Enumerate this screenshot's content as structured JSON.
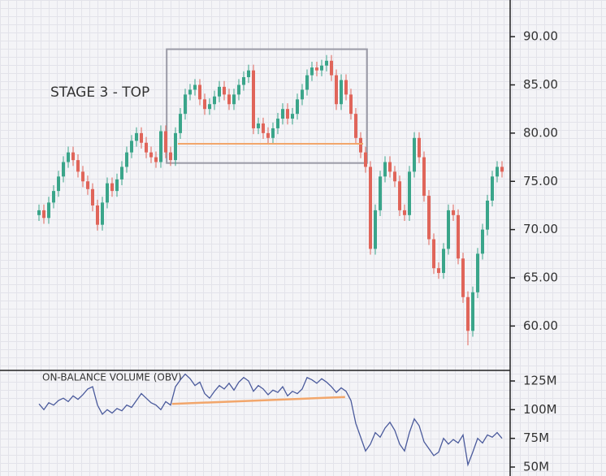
{
  "chart_data": [
    {
      "type": "candlestick",
      "annotation": "STAGE 3 - TOP",
      "up_color": "#3aa58a",
      "down_color": "#e0655a",
      "open": [
        71.5,
        72.0,
        71.2,
        72.8,
        74.0,
        75.5,
        77.0,
        78.0,
        77.2,
        76.0,
        75.0,
        74.2,
        72.5,
        70.5,
        72.8,
        74.8,
        74.0,
        75.2,
        76.5,
        78.0,
        79.2,
        80.0,
        79.0,
        78.0,
        77.5,
        77.0,
        80.2,
        78.0,
        77.2,
        80.0,
        82.0,
        84.0,
        84.5,
        85.0,
        83.5,
        82.5,
        83.0,
        83.8,
        84.8,
        84.0,
        83.0,
        84.0,
        85.0,
        85.8,
        86.5,
        80.5,
        81.0,
        80.0,
        79.5,
        80.5,
        81.5,
        82.5,
        81.5,
        82.0,
        83.5,
        84.5,
        86.0,
        86.8,
        86.5,
        87.0,
        87.5,
        86.0,
        83.0,
        85.5,
        84.0,
        82.0,
        79.5,
        78.0,
        76.5,
        68.0,
        72.0,
        75.5,
        77.0,
        76.0,
        75.0,
        72.0,
        71.5,
        76.0,
        79.5,
        77.5,
        73.5,
        69.0,
        66.0,
        65.5,
        68.0,
        72.0,
        71.5,
        67.0,
        63.0,
        59.5,
        63.5,
        67.5,
        70.0,
        73.0,
        75.5,
        76.5
      ],
      "high": [
        72.6,
        72.6,
        73.4,
        74.6,
        76.1,
        77.6,
        78.6,
        78.6,
        77.8,
        76.6,
        75.6,
        74.8,
        73.1,
        73.4,
        75.4,
        75.4,
        75.8,
        77.1,
        78.6,
        79.8,
        80.6,
        80.6,
        79.6,
        78.6,
        78.1,
        80.8,
        80.8,
        78.6,
        80.6,
        82.6,
        84.6,
        85.1,
        85.6,
        85.6,
        84.1,
        83.6,
        84.4,
        85.4,
        85.4,
        84.6,
        84.6,
        85.6,
        86.4,
        87.1,
        87.1,
        81.6,
        81.6,
        80.6,
        81.1,
        82.1,
        83.1,
        83.1,
        82.6,
        84.1,
        85.1,
        86.6,
        87.4,
        87.4,
        87.6,
        88.1,
        88.1,
        86.6,
        86.1,
        86.1,
        84.6,
        82.6,
        80.1,
        78.6,
        77.1,
        72.6,
        76.1,
        77.6,
        77.6,
        76.6,
        75.6,
        72.6,
        76.6,
        80.1,
        80.1,
        78.1,
        74.1,
        69.6,
        66.6,
        68.6,
        72.6,
        72.6,
        72.1,
        67.6,
        63.6,
        64.1,
        68.1,
        70.6,
        73.6,
        76.1,
        77.1,
        77.1
      ],
      "low": [
        70.9,
        70.6,
        70.6,
        72.2,
        73.4,
        74.9,
        76.4,
        76.6,
        75.4,
        74.4,
        73.6,
        71.9,
        69.9,
        69.9,
        72.2,
        73.4,
        73.4,
        74.6,
        75.9,
        77.4,
        78.6,
        78.4,
        77.4,
        76.9,
        76.4,
        76.4,
        77.4,
        76.6,
        76.6,
        79.4,
        81.4,
        83.4,
        83.9,
        82.9,
        81.9,
        81.9,
        82.4,
        83.2,
        83.4,
        82.4,
        82.4,
        83.4,
        84.4,
        85.2,
        79.9,
        79.9,
        79.4,
        78.9,
        78.9,
        79.9,
        80.9,
        80.9,
        80.9,
        81.4,
        82.9,
        83.9,
        85.4,
        85.9,
        85.9,
        86.4,
        85.4,
        82.4,
        82.4,
        83.4,
        81.4,
        78.9,
        77.4,
        75.9,
        67.4,
        67.4,
        71.4,
        74.9,
        75.4,
        74.4,
        71.4,
        70.9,
        70.9,
        75.4,
        76.9,
        72.9,
        68.4,
        65.4,
        64.9,
        64.9,
        67.4,
        70.9,
        66.4,
        62.4,
        58.0,
        58.9,
        62.9,
        66.9,
        69.4,
        72.4,
        74.9,
        75.4
      ],
      "close": [
        72.0,
        71.2,
        72.8,
        74.0,
        75.5,
        77.0,
        78.0,
        77.2,
        76.0,
        75.0,
        74.2,
        72.5,
        70.5,
        72.8,
        74.8,
        74.0,
        75.2,
        76.5,
        78.0,
        79.2,
        80.0,
        79.0,
        78.0,
        77.5,
        77.0,
        80.2,
        78.0,
        77.2,
        80.0,
        82.0,
        84.0,
        84.5,
        85.0,
        83.5,
        82.5,
        83.0,
        83.8,
        84.8,
        84.0,
        83.0,
        84.0,
        85.0,
        85.8,
        86.5,
        80.5,
        81.0,
        80.0,
        79.5,
        80.5,
        81.5,
        82.5,
        81.5,
        82.0,
        83.5,
        84.5,
        86.0,
        86.8,
        86.5,
        87.0,
        87.5,
        86.0,
        83.0,
        85.5,
        84.0,
        82.0,
        79.5,
        78.0,
        76.5,
        68.0,
        72.0,
        75.5,
        77.0,
        76.0,
        75.0,
        72.0,
        71.5,
        76.0,
        79.5,
        77.5,
        73.5,
        69.0,
        66.0,
        65.5,
        68.0,
        72.0,
        71.5,
        67.0,
        63.0,
        59.5,
        63.5,
        67.5,
        70.0,
        73.0,
        75.5,
        76.5,
        76.0
      ],
      "highlight": {
        "start": 26.2,
        "end": 67.3,
        "low": 76.9,
        "high": 88.7,
        "color": "#9a9aa6"
      },
      "support": {
        "start": 28.5,
        "end": 66.5,
        "value": 78.9,
        "color": "#f2a66b"
      },
      "ylim": [
        55.4,
        93.8
      ],
      "yticks": [
        {
          "value": 90,
          "label": "90.00"
        },
        {
          "value": 85,
          "label": "85.00"
        },
        {
          "value": 80,
          "label": "80.00"
        },
        {
          "value": 75,
          "label": "75.00"
        },
        {
          "value": 70,
          "label": "70.00"
        },
        {
          "value": 65,
          "label": "65.00"
        },
        {
          "value": 60,
          "label": "60.00"
        }
      ]
    },
    {
      "type": "line",
      "title": "ON-BALANCE VOLUME (OBV)",
      "color": "#4a5a9c",
      "values": [
        105,
        100,
        106,
        104,
        108,
        110,
        107,
        112,
        109,
        113,
        118,
        120,
        104,
        96,
        100,
        97,
        101,
        99,
        104,
        102,
        108,
        114,
        110,
        106,
        104,
        100,
        107,
        104,
        120,
        126,
        131,
        127,
        121,
        124,
        114,
        110,
        116,
        121,
        118,
        123,
        117,
        124,
        128,
        125,
        116,
        121,
        118,
        113,
        117,
        115,
        120,
        112,
        116,
        114,
        118,
        128,
        126,
        123,
        127,
        124,
        120,
        115,
        119,
        116,
        108,
        88,
        76,
        64,
        70,
        80,
        76,
        84,
        89,
        82,
        70,
        64,
        80,
        92,
        86,
        72,
        66,
        60,
        63,
        75,
        70,
        74,
        71,
        78,
        52,
        63,
        75,
        71,
        78,
        76,
        80,
        75
      ],
      "trend": {
        "start": 27.3,
        "end": 62.8,
        "from": 105,
        "to": 111,
        "color": "#f2a66b"
      },
      "ylim": [
        42.2,
        134.2
      ],
      "yticks": [
        {
          "value": 125,
          "label": "125M"
        },
        {
          "value": 100,
          "label": "100M"
        },
        {
          "value": 75,
          "label": "75M"
        },
        {
          "value": 50,
          "label": "50M"
        }
      ]
    }
  ]
}
